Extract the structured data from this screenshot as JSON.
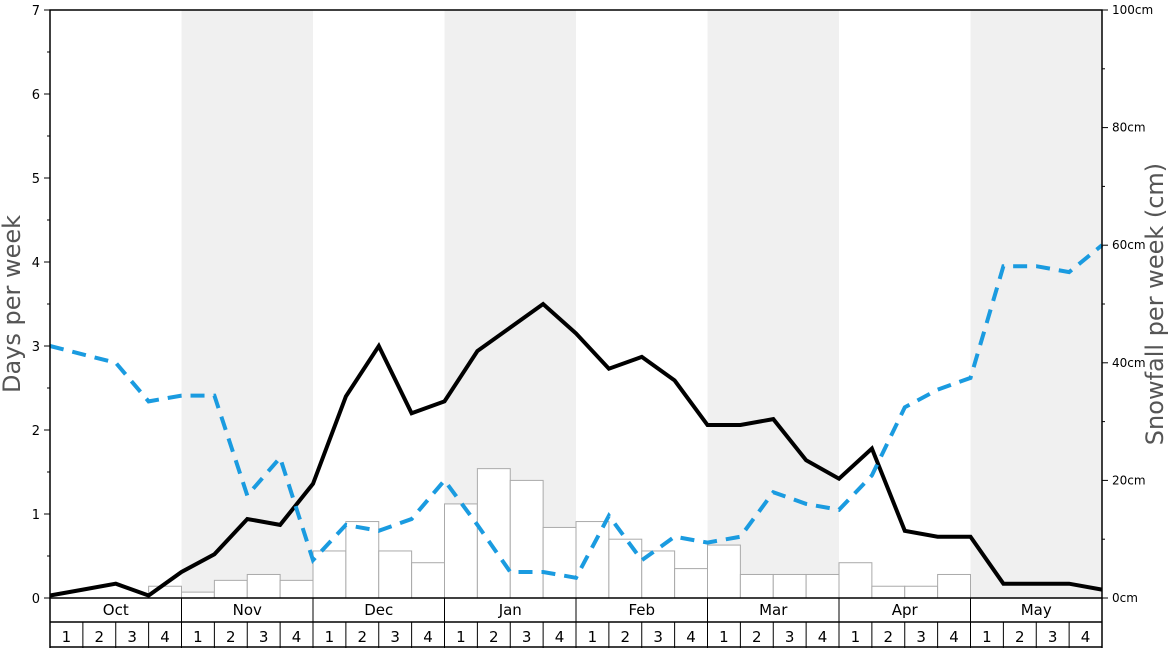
{
  "chart_data": {
    "type": "bar+line",
    "ylabel_left": "Days per week",
    "ylabel_right": "Snowfall per week (cm)",
    "left_axis": {
      "ylim": [
        0,
        7
      ],
      "ticks": [
        "0",
        "1",
        "2",
        "3",
        "4",
        "5",
        "6",
        "7"
      ]
    },
    "right_axis": {
      "ylim": [
        0,
        100
      ],
      "ticks": [
        "0cm",
        "20cm",
        "40cm",
        "60cm",
        "80cm",
        "100cm"
      ]
    },
    "months": [
      "Oct",
      "Nov",
      "Dec",
      "Jan",
      "Feb",
      "Mar",
      "Apr",
      "May"
    ],
    "weeks": [
      "1",
      "2",
      "3",
      "4"
    ],
    "series": [
      {
        "kind": "bar",
        "axis": "right",
        "unit": "cm",
        "values": [
          0,
          0,
          0,
          2,
          1,
          3,
          4,
          3,
          8,
          13,
          8,
          6,
          16,
          22,
          20,
          12,
          13,
          10,
          8,
          5,
          9,
          4,
          4,
          4,
          6,
          2,
          2,
          4,
          0,
          0,
          0,
          0
        ]
      },
      {
        "kind": "line",
        "axis": "left",
        "style": "solid",
        "color": "#000000",
        "values": [
          0.03,
          0.1,
          0.17,
          0.03,
          0.31,
          0.52,
          0.94,
          0.87,
          1.36,
          2.4,
          3.0,
          2.2,
          2.34,
          2.94,
          3.22,
          3.5,
          3.15,
          2.73,
          2.87,
          2.59,
          2.06,
          2.06,
          2.13,
          1.64,
          1.42,
          1.78,
          0.8,
          0.73,
          0.73,
          0.17,
          0.17,
          0.17,
          0.1
        ]
      },
      {
        "kind": "line",
        "axis": "left",
        "style": "dashed",
        "color": "#1a9be0",
        "values": [
          3.0,
          2.9,
          2.8,
          2.34,
          2.41,
          2.41,
          1.22,
          1.67,
          0.45,
          0.87,
          0.8,
          0.94,
          1.4,
          0.87,
          0.31,
          0.31,
          0.24,
          0.98,
          0.45,
          0.73,
          0.66,
          0.73,
          1.26,
          1.12,
          1.05,
          1.46,
          2.27,
          2.48,
          2.62,
          3.95,
          3.95,
          3.88,
          4.2
        ]
      }
    ],
    "colors": {
      "band_shade": "#f0f0f0",
      "bar_fill": "#ffffff",
      "bar_stroke": "#aaaaaa",
      "axis": "#000000"
    }
  }
}
